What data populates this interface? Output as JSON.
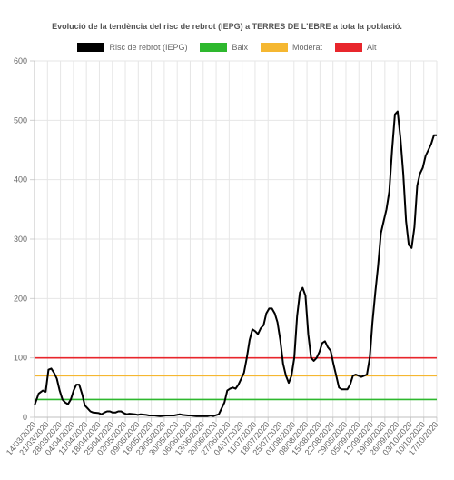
{
  "chart_data": {
    "type": "line",
    "title": "Evolució de la tendència del risc de rebrot (IEPG) a TERRES DE L'EBRE a tota la població.",
    "xlabel": "",
    "ylabel": "",
    "ylim": [
      0,
      600
    ],
    "yticks": [
      0,
      100,
      200,
      300,
      400,
      500,
      600
    ],
    "grid": true,
    "legend_position": "top",
    "x_tick_labels": [
      "14/03/2020",
      "21/03/2020",
      "28/03/2020",
      "04/04/2020",
      "11/04/2020",
      "18/04/2020",
      "25/04/2020",
      "02/05/2020",
      "09/05/2020",
      "16/05/2020",
      "23/05/2020",
      "30/05/2020",
      "06/06/2020",
      "13/06/2020",
      "20/06/2020",
      "27/06/2020",
      "04/07/2020",
      "11/07/2020",
      "18/07/2020",
      "25/07/2020",
      "01/08/2020",
      "08/08/2020",
      "15/08/2020",
      "22/08/2020",
      "29/08/2020",
      "05/09/2020",
      "12/09/2020",
      "19/09/2020",
      "26/09/2020",
      "03/10/2020",
      "10/10/2020",
      "17/10/2020"
    ],
    "series": [
      {
        "name": "Risc de rebrot (IEPG)",
        "color": "#000000",
        "points": [
          [
            0,
            20
          ],
          [
            1.5,
            40
          ],
          [
            3,
            45
          ],
          [
            4,
            43
          ],
          [
            5,
            80
          ],
          [
            6,
            82
          ],
          [
            7,
            75
          ],
          [
            8,
            65
          ],
          [
            9,
            45
          ],
          [
            10,
            30
          ],
          [
            11,
            25
          ],
          [
            12,
            22
          ],
          [
            13,
            30
          ],
          [
            14,
            45
          ],
          [
            15,
            55
          ],
          [
            16,
            55
          ],
          [
            17,
            40
          ],
          [
            18,
            20
          ],
          [
            19,
            15
          ],
          [
            20,
            10
          ],
          [
            21,
            8
          ],
          [
            23,
            7
          ],
          [
            24,
            5
          ],
          [
            25,
            8
          ],
          [
            26,
            10
          ],
          [
            27,
            10
          ],
          [
            28,
            8
          ],
          [
            29,
            8
          ],
          [
            30,
            10
          ],
          [
            31,
            10
          ],
          [
            32,
            7
          ],
          [
            33,
            5
          ],
          [
            34,
            6
          ],
          [
            36,
            5
          ],
          [
            37,
            4
          ],
          [
            38,
            5
          ],
          [
            40,
            4
          ],
          [
            41,
            3
          ],
          [
            43,
            3
          ],
          [
            45,
            2
          ],
          [
            47,
            3
          ],
          [
            49,
            3
          ],
          [
            50,
            3
          ],
          [
            51,
            4
          ],
          [
            52,
            5
          ],
          [
            53,
            4
          ],
          [
            55,
            3
          ],
          [
            56,
            3
          ],
          [
            58,
            2
          ],
          [
            60,
            2
          ],
          [
            62,
            2
          ],
          [
            63,
            3
          ],
          [
            64,
            2
          ],
          [
            66,
            5
          ],
          [
            67,
            15
          ],
          [
            68,
            25
          ],
          [
            69,
            45
          ],
          [
            70,
            48
          ],
          [
            71,
            50
          ],
          [
            72,
            48
          ],
          [
            73,
            55
          ],
          [
            74,
            65
          ],
          [
            75,
            75
          ],
          [
            76,
            100
          ],
          [
            77,
            130
          ],
          [
            78,
            148
          ],
          [
            79,
            145
          ],
          [
            80,
            140
          ],
          [
            81,
            150
          ],
          [
            82,
            155
          ],
          [
            83,
            175
          ],
          [
            84,
            183
          ],
          [
            85,
            183
          ],
          [
            86,
            175
          ],
          [
            87,
            160
          ],
          [
            88,
            130
          ],
          [
            89,
            90
          ],
          [
            90,
            70
          ],
          [
            91,
            58
          ],
          [
            92,
            70
          ],
          [
            93,
            100
          ],
          [
            94,
            170
          ],
          [
            95,
            210
          ],
          [
            96,
            218
          ],
          [
            97,
            205
          ],
          [
            98,
            140
          ],
          [
            99,
            100
          ],
          [
            100,
            95
          ],
          [
            101,
            100
          ],
          [
            102,
            110
          ],
          [
            103,
            125
          ],
          [
            104,
            128
          ],
          [
            105,
            118
          ],
          [
            106,
            112
          ],
          [
            107,
            90
          ],
          [
            108,
            70
          ],
          [
            109,
            50
          ],
          [
            110,
            47
          ],
          [
            111,
            47
          ],
          [
            112,
            47
          ],
          [
            113,
            55
          ],
          [
            114,
            70
          ],
          [
            115,
            72
          ],
          [
            116,
            70
          ],
          [
            117,
            68
          ],
          [
            118,
            70
          ],
          [
            119,
            72
          ],
          [
            120,
            100
          ],
          [
            121,
            160
          ],
          [
            122,
            210
          ],
          [
            123,
            255
          ],
          [
            124,
            310
          ],
          [
            125,
            330
          ],
          [
            126,
            350
          ],
          [
            127,
            380
          ],
          [
            128,
            450
          ],
          [
            129,
            510
          ],
          [
            130,
            515
          ],
          [
            131,
            470
          ],
          [
            132,
            410
          ],
          [
            133,
            330
          ],
          [
            134,
            290
          ],
          [
            135,
            285
          ],
          [
            136,
            320
          ],
          [
            137,
            390
          ],
          [
            138,
            410
          ],
          [
            139,
            420
          ],
          [
            140,
            440
          ],
          [
            141,
            450
          ],
          [
            142,
            460
          ],
          [
            143,
            475
          ],
          [
            144,
            475
          ]
        ]
      },
      {
        "name": "Baix",
        "color": "#2eb82e",
        "constant": 30
      },
      {
        "name": "Moderat",
        "color": "#f5b731",
        "constant": 70
      },
      {
        "name": "Alt",
        "color": "#e8262c",
        "constant": 100
      }
    ]
  }
}
